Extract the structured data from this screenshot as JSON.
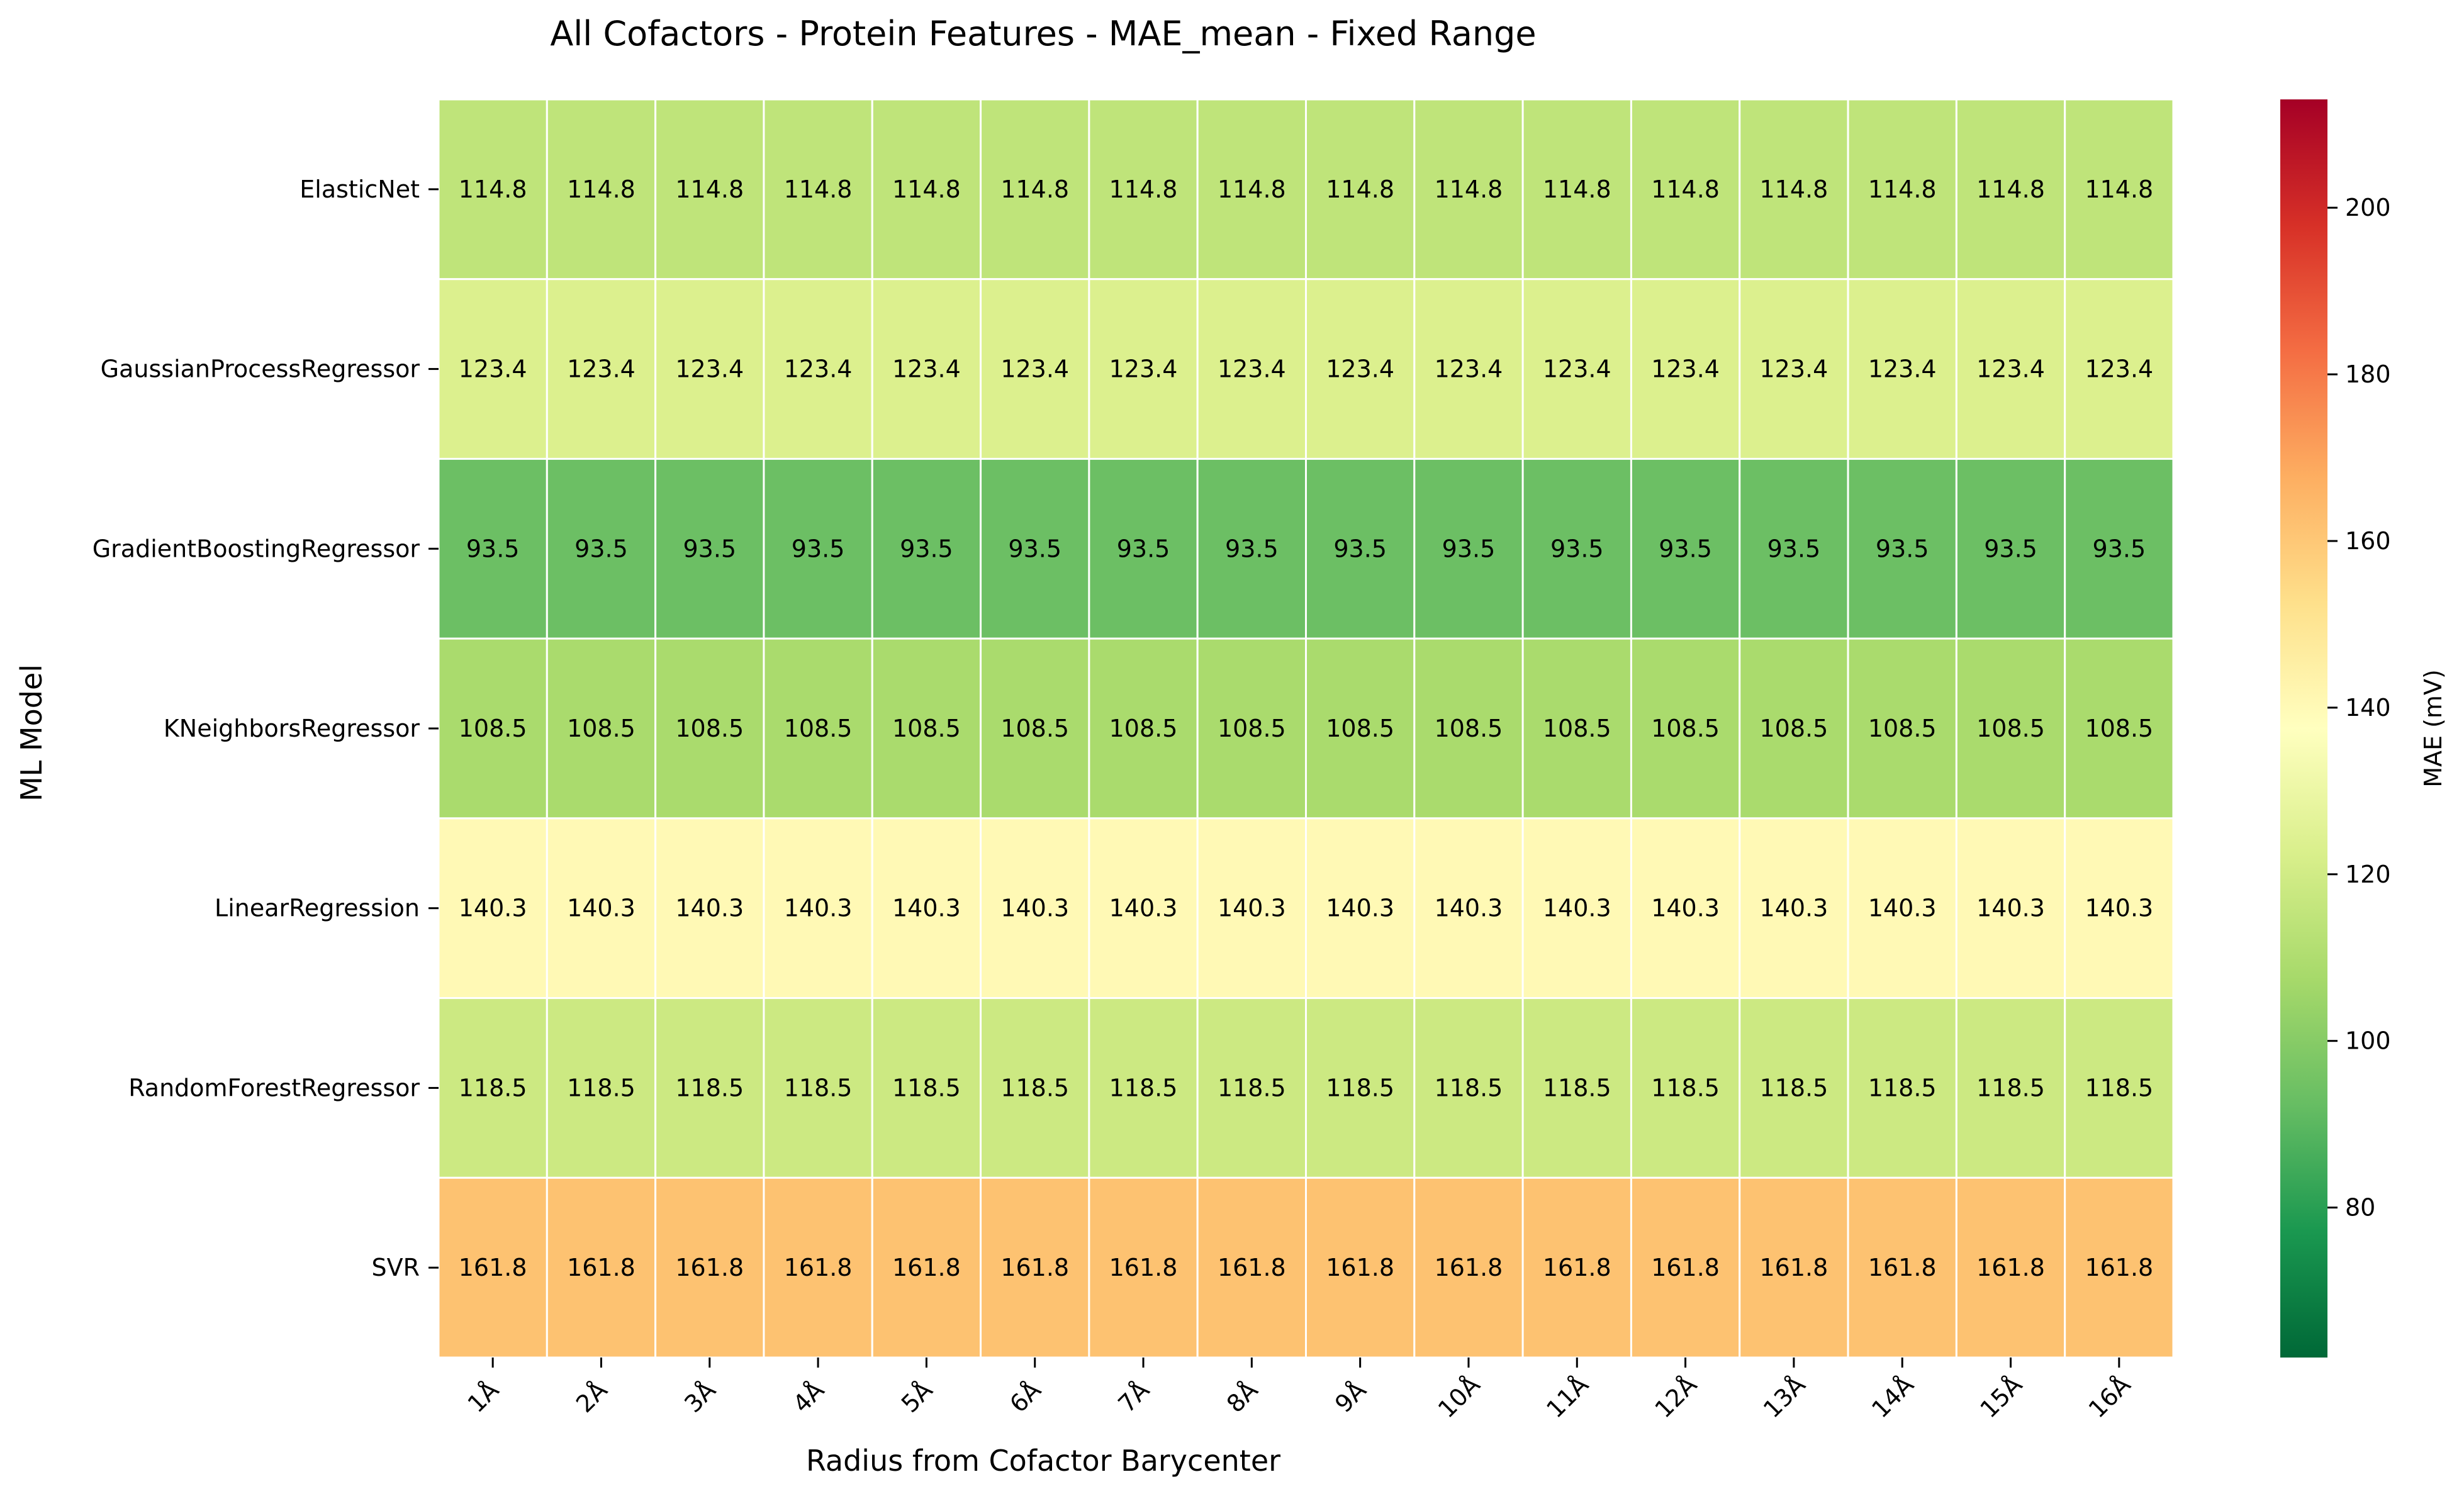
{
  "chart_data": {
    "type": "heatmap",
    "title": "All Cofactors - Protein Features - MAE_mean - Fixed Range",
    "xlabel": "Radius from Cofactor Barycenter",
    "ylabel": "ML Model",
    "x_categories": [
      "1Å",
      "2Å",
      "3Å",
      "4Å",
      "5Å",
      "6Å",
      "7Å",
      "8Å",
      "9Å",
      "10Å",
      "11Å",
      "12Å",
      "13Å",
      "14Å",
      "15Å",
      "16Å"
    ],
    "y_categories": [
      "ElasticNet",
      "GaussianProcessRegressor",
      "GradientBoostingRegressor",
      "KNeighborsRegressor",
      "LinearRegression",
      "RandomForestRegressor",
      "SVR"
    ],
    "values": [
      [
        114.8,
        114.8,
        114.8,
        114.8,
        114.8,
        114.8,
        114.8,
        114.8,
        114.8,
        114.8,
        114.8,
        114.8,
        114.8,
        114.8,
        114.8,
        114.8
      ],
      [
        123.4,
        123.4,
        123.4,
        123.4,
        123.4,
        123.4,
        123.4,
        123.4,
        123.4,
        123.4,
        123.4,
        123.4,
        123.4,
        123.4,
        123.4,
        123.4
      ],
      [
        93.5,
        93.5,
        93.5,
        93.5,
        93.5,
        93.5,
        93.5,
        93.5,
        93.5,
        93.5,
        93.5,
        93.5,
        93.5,
        93.5,
        93.5,
        93.5
      ],
      [
        108.5,
        108.5,
        108.5,
        108.5,
        108.5,
        108.5,
        108.5,
        108.5,
        108.5,
        108.5,
        108.5,
        108.5,
        108.5,
        108.5,
        108.5,
        108.5
      ],
      [
        140.3,
        140.3,
        140.3,
        140.3,
        140.3,
        140.3,
        140.3,
        140.3,
        140.3,
        140.3,
        140.3,
        140.3,
        140.3,
        140.3,
        140.3,
        140.3
      ],
      [
        118.5,
        118.5,
        118.5,
        118.5,
        118.5,
        118.5,
        118.5,
        118.5,
        118.5,
        118.5,
        118.5,
        118.5,
        118.5,
        118.5,
        118.5,
        118.5
      ],
      [
        161.8,
        161.8,
        161.8,
        161.8,
        161.8,
        161.8,
        161.8,
        161.8,
        161.8,
        161.8,
        161.8,
        161.8,
        161.8,
        161.8,
        161.8,
        161.8
      ]
    ],
    "value_format": "0.1f",
    "colormap": "RdYlGn_r",
    "colorbar": {
      "label": "MAE (mV)",
      "range": [
        62,
        213
      ],
      "ticks": [
        80,
        100,
        120,
        140,
        160,
        180,
        200
      ]
    },
    "grid": false
  }
}
